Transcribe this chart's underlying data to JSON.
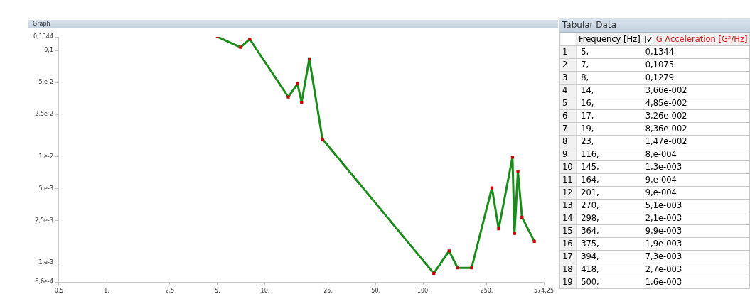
{
  "chart_data": [
    {
      "type": "line",
      "title": "Graph",
      "x": [
        5,
        7,
        8,
        14,
        16,
        17,
        19,
        23,
        116,
        145,
        164,
        201,
        270,
        298,
        364,
        375,
        394,
        418,
        500
      ],
      "series": [
        {
          "color": "#1a8c1a",
          "values": [
            0.1344,
            0.1075,
            0.1279,
            0.0366,
            0.0485,
            0.0326,
            0.0836,
            0.0147,
            0.0008,
            0.0013,
            0.0009,
            0.0009,
            0.0051,
            0.0021,
            0.0099,
            0.0019,
            0.0073,
            0.0027,
            0.0016
          ]
        }
      ],
      "log": "xy",
      "marker": "square",
      "xlim": [
        0.5,
        574.25
      ],
      "xticks": [
        {
          "value": 0.5,
          "label": "0,5"
        },
        {
          "value": 1,
          "label": "1,"
        },
        {
          "value": 2.5,
          "label": "2,5"
        },
        {
          "value": 5,
          "label": "5,"
        },
        {
          "value": 10,
          "label": "10,"
        },
        {
          "value": 25,
          "label": "25,"
        },
        {
          "value": 50,
          "label": "50,"
        },
        {
          "value": 100,
          "label": "100,"
        },
        {
          "value": 250,
          "label": "250,"
        },
        {
          "value": 574.25,
          "label": "574,25"
        }
      ],
      "ylim": [
        0.00066,
        0.1344
      ],
      "yticks": [
        {
          "value": 0.00066,
          "label": "6,6e-4"
        },
        {
          "value": 0.001,
          "label": "1,e-3"
        },
        {
          "value": 0.0025,
          "label": "2,5e-3"
        },
        {
          "value": 0.005,
          "label": "5,e-3"
        },
        {
          "value": 0.01,
          "label": "1,e-2"
        },
        {
          "value": 0.025,
          "label": "2,5e-2"
        },
        {
          "value": 0.05,
          "label": "5,e-2"
        },
        {
          "value": 0.1,
          "label": "0,1"
        },
        {
          "value": 0.1344,
          "label": "0,1344"
        }
      ]
    },
    {
      "type": "other",
      "title": "Tabular Data",
      "y_categories": [
        "1",
        "2",
        "3",
        "4",
        "5",
        "6",
        "7",
        "8",
        "9",
        "10",
        "11",
        "12",
        "13",
        "14",
        "15",
        "16",
        "17",
        "18",
        "19"
      ],
      "annotations": [
        "Frequency [Hz]",
        "G Acceleration [G²/Hz]",
        "5,",
        "0,1344",
        "7,",
        "0,1075",
        "8,",
        "0,1279",
        "14,",
        "3,66e-002",
        "16,",
        "4,85e-002",
        "17,",
        "3,26e-002",
        "19,",
        "8,36e-002",
        "23,",
        "1,47e-002",
        "116,",
        "8,e-004",
        "145,",
        "1,3e-003",
        "164,",
        "9,e-004",
        "201,",
        "9,e-004",
        "270,",
        "5,1e-003",
        "298,",
        "2,1e-003",
        "364,",
        "9,9e-003",
        "375,",
        "1,9e-003",
        "394,",
        "7,3e-003",
        "418,",
        "2,7e-003",
        "500,",
        "1,6e-003"
      ]
    }
  ]
}
